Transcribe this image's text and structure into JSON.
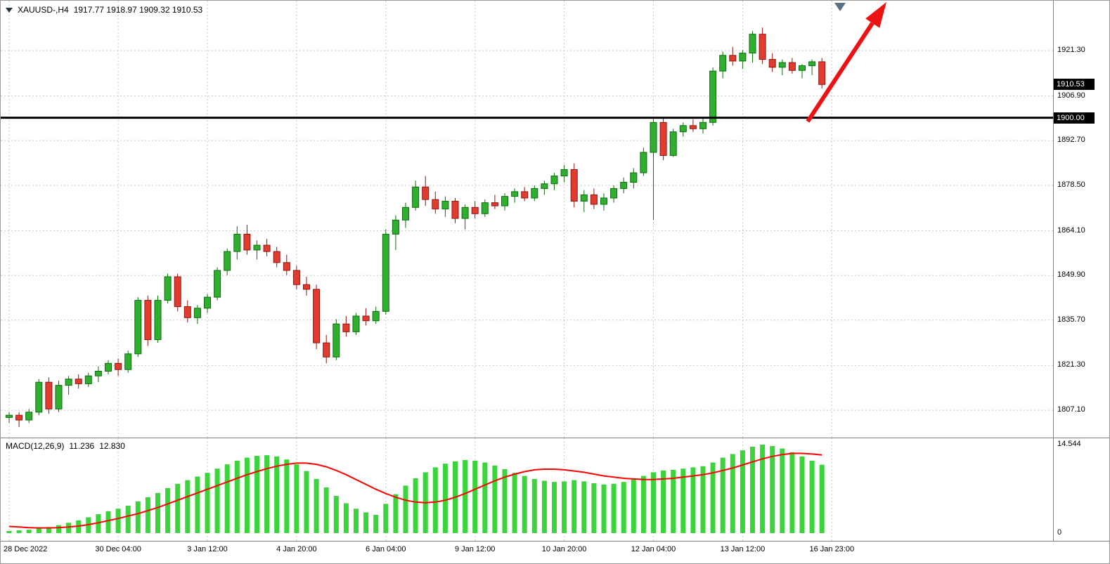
{
  "header": {
    "symbol_period": "XAUUSD-,H4",
    "ohlc": "1917.77 1918.97 1909.32 1910.53"
  },
  "price_axis": {
    "ticks": [
      "1921.30",
      "1906.90",
      "1892.70",
      "1878.50",
      "1864.10",
      "1849.90",
      "1835.70",
      "1821.30",
      "1807.10"
    ],
    "current_price_badge": "1910.53",
    "hline_badge": "1900.00"
  },
  "macd_axis": {
    "max": "14.544",
    "zero": "0"
  },
  "chart_data": {
    "type": "candlestick",
    "title": "XAUUSD-,H4",
    "symbol": "XAUUSD-",
    "timeframe": "H4",
    "last_bar": {
      "open": 1917.77,
      "high": 1918.97,
      "low": 1909.32,
      "close": 1910.53
    },
    "price_ticks": [
      1921.3,
      1906.9,
      1892.7,
      1878.5,
      1864.1,
      1849.9,
      1835.7,
      1821.3,
      1807.1
    ],
    "visible_price_range": [
      1799.0,
      1937.0
    ],
    "current_price": 1910.53,
    "hline": 1900.0,
    "objects": [
      {
        "type": "horizontal_line",
        "price": 1900.0,
        "color": "#000000",
        "width": 3
      },
      {
        "type": "trend_arrow_up",
        "color": "#ee1111",
        "location": "from 1900 line toward upper-right"
      },
      {
        "type": "triangle_marker_down",
        "color": "#5b7286",
        "location": "top, above arrow start"
      }
    ],
    "x_labels": [
      {
        "label": "28 Dec 2022",
        "index": 0
      },
      {
        "label": "30 Dec 04:00",
        "index": 11
      },
      {
        "label": "3 Jan 12:00",
        "index": 20
      },
      {
        "label": "4 Jan 20:00",
        "index": 29
      },
      {
        "label": "6 Jan 04:00",
        "index": 38
      },
      {
        "label": "9 Jan 12:00",
        "index": 47
      },
      {
        "label": "10 Jan 20:00",
        "index": 56
      },
      {
        "label": "12 Jan 04:00",
        "index": 65
      },
      {
        "label": "13 Jan 12:00",
        "index": 74
      },
      {
        "label": "16 Jan 23:00",
        "index": 83
      }
    ],
    "candles": [
      [
        1804.8,
        1806.5,
        1803.0,
        1805.5
      ],
      [
        1805.5,
        1806.5,
        1801.8,
        1804.0
      ],
      [
        1804.0,
        1807.5,
        1803.0,
        1806.5
      ],
      [
        1806.5,
        1817.0,
        1805.5,
        1816.0
      ],
      [
        1816.0,
        1817.5,
        1806.0,
        1807.5
      ],
      [
        1807.5,
        1816.5,
        1806.5,
        1815.0
      ],
      [
        1815.0,
        1818.0,
        1812.0,
        1817.0
      ],
      [
        1817.0,
        1818.5,
        1814.0,
        1815.5
      ],
      [
        1815.5,
        1819.0,
        1814.5,
        1818.0
      ],
      [
        1818.0,
        1821.0,
        1816.0,
        1819.5
      ],
      [
        1819.5,
        1823.0,
        1818.5,
        1822.0
      ],
      [
        1822.0,
        1823.5,
        1818.0,
        1820.0
      ],
      [
        1820.0,
        1826.0,
        1819.0,
        1825.0
      ],
      [
        1825.0,
        1843.0,
        1824.0,
        1842.0
      ],
      [
        1842.0,
        1843.5,
        1827.5,
        1829.5
      ],
      [
        1829.5,
        1843.5,
        1828.5,
        1842.0
      ],
      [
        1842.0,
        1850.5,
        1841.0,
        1849.5
      ],
      [
        1849.5,
        1850.5,
        1838.5,
        1840.0
      ],
      [
        1840.0,
        1842.0,
        1835.0,
        1836.5
      ],
      [
        1836.5,
        1840.5,
        1834.5,
        1839.5
      ],
      [
        1839.5,
        1844.0,
        1838.0,
        1843.0
      ],
      [
        1843.0,
        1852.5,
        1842.0,
        1851.5
      ],
      [
        1851.5,
        1858.5,
        1850.0,
        1857.5
      ],
      [
        1857.5,
        1865.5,
        1855.0,
        1863.0
      ],
      [
        1863.0,
        1866.0,
        1856.5,
        1858.0
      ],
      [
        1858.0,
        1861.0,
        1855.0,
        1859.5
      ],
      [
        1859.5,
        1861.5,
        1856.0,
        1857.5
      ],
      [
        1857.5,
        1859.0,
        1852.5,
        1854.0
      ],
      [
        1854.0,
        1856.5,
        1850.0,
        1851.5
      ],
      [
        1851.5,
        1853.0,
        1845.5,
        1847.0
      ],
      [
        1847.0,
        1849.5,
        1843.5,
        1845.5
      ],
      [
        1845.5,
        1847.0,
        1826.5,
        1828.5
      ],
      [
        1828.5,
        1831.0,
        1822.0,
        1824.0
      ],
      [
        1824.0,
        1836.0,
        1823.0,
        1834.5
      ],
      [
        1834.5,
        1837.0,
        1830.5,
        1832.0
      ],
      [
        1832.0,
        1838.0,
        1831.0,
        1837.0
      ],
      [
        1837.0,
        1839.5,
        1834.0,
        1835.5
      ],
      [
        1835.5,
        1840.0,
        1834.5,
        1838.5
      ],
      [
        1838.5,
        1864.5,
        1837.5,
        1863.0
      ],
      [
        1863.0,
        1869.0,
        1858.0,
        1867.5
      ],
      [
        1867.5,
        1873.0,
        1865.0,
        1871.5
      ],
      [
        1871.5,
        1880.0,
        1870.5,
        1878.0
      ],
      [
        1878.0,
        1881.5,
        1872.0,
        1874.0
      ],
      [
        1874.0,
        1876.5,
        1869.5,
        1871.0
      ],
      [
        1871.0,
        1875.0,
        1868.5,
        1873.5
      ],
      [
        1873.5,
        1874.5,
        1866.5,
        1868.0
      ],
      [
        1868.0,
        1872.5,
        1864.5,
        1871.5
      ],
      [
        1871.5,
        1873.5,
        1868.0,
        1869.5
      ],
      [
        1869.5,
        1874.0,
        1868.5,
        1873.0
      ],
      [
        1873.0,
        1875.5,
        1871.0,
        1872.0
      ],
      [
        1872.0,
        1876.0,
        1870.5,
        1875.0
      ],
      [
        1875.0,
        1877.5,
        1873.0,
        1876.5
      ],
      [
        1876.5,
        1878.0,
        1873.5,
        1874.5
      ],
      [
        1874.5,
        1878.5,
        1873.5,
        1877.5
      ],
      [
        1877.5,
        1880.0,
        1875.5,
        1879.0
      ],
      [
        1879.0,
        1882.5,
        1877.0,
        1881.5
      ],
      [
        1881.5,
        1885.0,
        1879.5,
        1883.5
      ],
      [
        1883.5,
        1885.5,
        1871.5,
        1873.5
      ],
      [
        1873.5,
        1877.0,
        1870.0,
        1875.5
      ],
      [
        1875.5,
        1877.5,
        1871.0,
        1872.5
      ],
      [
        1872.5,
        1876.0,
        1870.5,
        1874.5
      ],
      [
        1874.5,
        1878.5,
        1873.0,
        1877.5
      ],
      [
        1877.5,
        1881.0,
        1876.0,
        1879.5
      ],
      [
        1879.5,
        1884.0,
        1877.5,
        1882.5
      ],
      [
        1882.5,
        1890.5,
        1881.5,
        1889.0
      ],
      [
        1889.0,
        1900.2,
        1867.5,
        1898.5
      ],
      [
        1898.5,
        1900.0,
        1886.5,
        1888.0
      ],
      [
        1888.0,
        1896.5,
        1887.5,
        1895.5
      ],
      [
        1895.5,
        1898.5,
        1894.0,
        1897.5
      ],
      [
        1897.5,
        1899.5,
        1895.5,
        1896.5
      ],
      [
        1896.5,
        1899.8,
        1895.0,
        1898.5
      ],
      [
        1898.5,
        1916.0,
        1897.5,
        1914.8
      ],
      [
        1914.8,
        1921.0,
        1912.5,
        1919.8
      ],
      [
        1919.8,
        1922.5,
        1916.5,
        1918.0
      ],
      [
        1918.0,
        1921.5,
        1915.5,
        1920.5
      ],
      [
        1920.5,
        1927.5,
        1917.5,
        1926.5
      ],
      [
        1926.5,
        1928.6,
        1917.0,
        1918.5
      ],
      [
        1918.5,
        1920.5,
        1914.5,
        1916.0
      ],
      [
        1916.0,
        1918.5,
        1913.5,
        1917.5
      ],
      [
        1917.5,
        1919.0,
        1914.0,
        1915.0
      ],
      [
        1915.0,
        1917.0,
        1912.5,
        1916.5
      ],
      [
        1916.5,
        1918.5,
        1913.5,
        1917.77
      ],
      [
        1917.77,
        1918.97,
        1909.32,
        1910.53
      ]
    ],
    "indicator": {
      "type": "macd",
      "label": "MACD(12,26,9)",
      "macd_value_str": "11.236",
      "signal_value_str": "12.830",
      "macd_value": 11.236,
      "signal_value": 12.83,
      "axis_max": 14.544,
      "axis_min": 0,
      "histogram": [
        0.35,
        0.45,
        0.55,
        0.75,
        1.0,
        1.3,
        1.7,
        2.1,
        2.6,
        3.1,
        3.6,
        4.0,
        4.5,
        5.2,
        5.9,
        6.6,
        7.4,
        8.1,
        8.7,
        9.3,
        9.9,
        10.6,
        11.3,
        11.9,
        12.4,
        12.7,
        12.8,
        12.6,
        12.1,
        11.3,
        10.2,
        8.9,
        7.5,
        6.1,
        4.9,
        4.0,
        3.4,
        3.0,
        4.8,
        6.4,
        7.8,
        9.0,
        10.0,
        10.8,
        11.4,
        11.8,
        12.0,
        11.9,
        11.6,
        11.1,
        10.5,
        9.9,
        9.4,
        8.9,
        8.6,
        8.4,
        8.5,
        8.7,
        8.5,
        8.2,
        8.0,
        8.1,
        8.4,
        8.8,
        9.4,
        10.0,
        10.3,
        10.4,
        10.6,
        10.8,
        11.0,
        11.6,
        12.4,
        13.0,
        13.6,
        14.2,
        14.544,
        14.3,
        13.9,
        13.3,
        12.6,
        11.9,
        11.236
      ],
      "signal": [
        1.1,
        1.0,
        0.9,
        0.85,
        0.85,
        0.9,
        1.0,
        1.15,
        1.4,
        1.7,
        2.05,
        2.4,
        2.8,
        3.2,
        3.7,
        4.2,
        4.8,
        5.4,
        6.0,
        6.6,
        7.2,
        7.8,
        8.4,
        9.0,
        9.6,
        10.1,
        10.6,
        11.0,
        11.3,
        11.5,
        11.5,
        11.3,
        10.9,
        10.3,
        9.6,
        8.8,
        8.0,
        7.2,
        6.5,
        5.9,
        5.4,
        5.1,
        5.0,
        5.1,
        5.4,
        5.9,
        6.5,
        7.2,
        7.9,
        8.6,
        9.2,
        9.7,
        10.1,
        10.4,
        10.5,
        10.5,
        10.4,
        10.2,
        10.0,
        9.7,
        9.4,
        9.2,
        9.0,
        8.9,
        8.8,
        8.8,
        8.9,
        9.0,
        9.2,
        9.4,
        9.6,
        9.9,
        10.3,
        10.7,
        11.2,
        11.7,
        12.2,
        12.6,
        12.9,
        13.1,
        13.1,
        13.0,
        12.83
      ]
    }
  },
  "colors": {
    "bull": "#2fae2f",
    "bull_edge": "#0d6e0d",
    "bear": "#e23b30",
    "bear_edge": "#8f160e",
    "histogram": "#3bd43b",
    "signal": "#ff0000",
    "hline": "#000000",
    "arrow": "#ee1111",
    "marker": "#5b7286",
    "badge_bg": "#000000",
    "badge_fg": "#ffffff",
    "grid": "#c7c7c7"
  }
}
